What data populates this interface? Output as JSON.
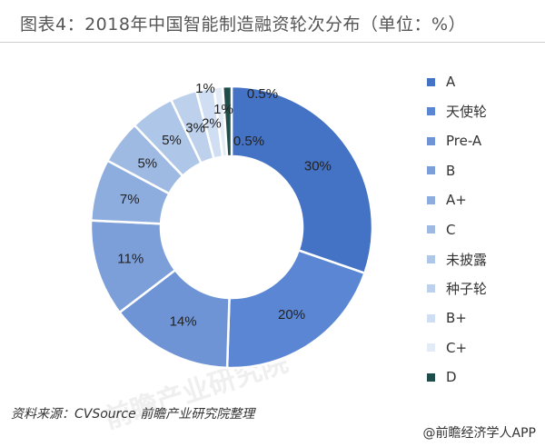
{
  "header": {
    "title": "图表4：2018年中国智能制造融资轮次分布（单位：%）"
  },
  "chart_data": {
    "type": "pie",
    "donut": true,
    "title": "图表4：2018年中国智能制造融资轮次分布（单位：%）",
    "categories": [
      "A",
      "天使轮",
      "Pre-A",
      "B",
      "A+",
      "C",
      "未披露",
      "种子轮",
      "B+",
      "C+",
      "D"
    ],
    "values": [
      30,
      20,
      14,
      11,
      7,
      5,
      5,
      3,
      2,
      1,
      1
    ],
    "data_labels": [
      "30%",
      "20%",
      "14%",
      "11%",
      "7%",
      "5%",
      "5%",
      "3%",
      "2%",
      "1%",
      "1%"
    ],
    "extra_labels": [
      "0.5%",
      "0.5%"
    ],
    "colors": [
      "#4472c4",
      "#5b86d3",
      "#6e94d6",
      "#7d9fd9",
      "#8eaddf",
      "#9ebae3",
      "#aec6e8",
      "#bdd1ec",
      "#cfdef2",
      "#e3ebf7",
      "#1f4e4a"
    ],
    "legend_position": "right"
  },
  "footer": {
    "source": "资料来源：CVSource 前瞻产业研究院整理",
    "credit": "@前瞻经济学人APP"
  },
  "watermark": {
    "text": "前瞻产业研究院"
  }
}
